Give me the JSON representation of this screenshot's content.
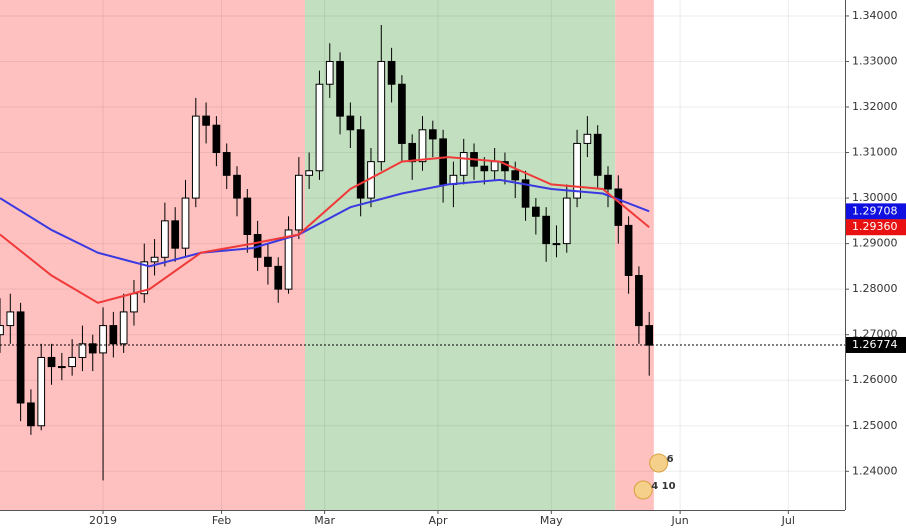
{
  "chart_data": {
    "type": "candlestick",
    "xlim": [
      0,
      164
    ],
    "ylim": [
      1.2315,
      1.3435
    ],
    "xticks": [
      {
        "value": 20,
        "label": "2019"
      },
      {
        "value": 43,
        "label": "Feb"
      },
      {
        "value": 63,
        "label": "Mar"
      },
      {
        "value": 85,
        "label": "Apr"
      },
      {
        "value": 107,
        "label": "May"
      },
      {
        "value": 132,
        "label": "Jun"
      },
      {
        "value": 153,
        "label": "Jul"
      }
    ],
    "yticks": [
      {
        "value": 1.24,
        "label": "1.24000"
      },
      {
        "value": 1.25,
        "label": "1.25000"
      },
      {
        "value": 1.26,
        "label": "1.26000"
      },
      {
        "value": 1.27,
        "label": "1.27000"
      },
      {
        "value": 1.28,
        "label": "1.28000"
      },
      {
        "value": 1.29,
        "label": "1.29000"
      },
      {
        "value": 1.3,
        "label": "1.30000"
      },
      {
        "value": 1.31,
        "label": "1.31000"
      },
      {
        "value": 1.32,
        "label": "1.32000"
      },
      {
        "value": 1.33,
        "label": "1.33000"
      },
      {
        "value": 1.34,
        "label": "1.34000"
      }
    ],
    "grid": true,
    "bands": [
      {
        "from": 0,
        "to": 59.2,
        "color": "#ffc0c0"
      },
      {
        "from": 59.2,
        "to": 119.4,
        "color": "#c2e0c0"
      },
      {
        "from": 119.4,
        "to": 126.9,
        "color": "#ffc0c0"
      }
    ],
    "up_color": "#ffffff",
    "down_color": "#000000",
    "x": [
      0,
      2,
      4,
      6,
      8,
      10,
      12,
      14,
      16,
      18,
      20,
      22,
      24,
      26,
      28,
      30,
      32,
      34,
      36,
      38,
      40,
      42,
      44,
      46,
      48,
      50,
      52,
      54,
      56,
      58,
      60,
      62,
      64,
      66,
      68,
      70,
      72,
      74,
      76,
      78,
      80,
      82,
      84,
      86,
      88,
      90,
      92,
      94,
      96,
      98,
      100,
      102,
      104,
      106,
      108,
      110,
      112,
      114,
      116,
      118,
      120,
      122,
      124,
      126
    ],
    "ohlc": [
      [
        1.27,
        1.278,
        1.266,
        1.272
      ],
      [
        1.272,
        1.279,
        1.268,
        1.275
      ],
      [
        1.275,
        1.277,
        1.251,
        1.255
      ],
      [
        1.255,
        1.258,
        1.248,
        1.25
      ],
      [
        1.25,
        1.268,
        1.249,
        1.265
      ],
      [
        1.265,
        1.268,
        1.259,
        1.263
      ],
      [
        1.263,
        1.266,
        1.26,
        1.263
      ],
      [
        1.263,
        1.269,
        1.261,
        1.265
      ],
      [
        1.265,
        1.272,
        1.262,
        1.268
      ],
      [
        1.268,
        1.27,
        1.262,
        1.266
      ],
      [
        1.266,
        1.276,
        1.238,
        1.272
      ],
      [
        1.272,
        1.275,
        1.265,
        1.268
      ],
      [
        1.268,
        1.279,
        1.266,
        1.275
      ],
      [
        1.275,
        1.282,
        1.272,
        1.279
      ],
      [
        1.279,
        1.29,
        1.277,
        1.286
      ],
      [
        1.286,
        1.291,
        1.283,
        1.287
      ],
      [
        1.287,
        1.299,
        1.285,
        1.295
      ],
      [
        1.295,
        1.298,
        1.286,
        1.289
      ],
      [
        1.289,
        1.304,
        1.287,
        1.3
      ],
      [
        1.3,
        1.322,
        1.298,
        1.318
      ],
      [
        1.318,
        1.321,
        1.312,
        1.316
      ],
      [
        1.316,
        1.318,
        1.307,
        1.31
      ],
      [
        1.31,
        1.312,
        1.302,
        1.305
      ],
      [
        1.305,
        1.307,
        1.296,
        1.3
      ],
      [
        1.3,
        1.302,
        1.288,
        1.292
      ],
      [
        1.292,
        1.295,
        1.284,
        1.287
      ],
      [
        1.287,
        1.29,
        1.281,
        1.285
      ],
      [
        1.285,
        1.287,
        1.277,
        1.28
      ],
      [
        1.28,
        1.296,
        1.279,
        1.293
      ],
      [
        1.293,
        1.309,
        1.291,
        1.305
      ],
      [
        1.305,
        1.31,
        1.302,
        1.306
      ],
      [
        1.306,
        1.328,
        1.304,
        1.325
      ],
      [
        1.325,
        1.334,
        1.322,
        1.33
      ],
      [
        1.33,
        1.332,
        1.314,
        1.318
      ],
      [
        1.318,
        1.321,
        1.311,
        1.315
      ],
      [
        1.315,
        1.318,
        1.296,
        1.3
      ],
      [
        1.3,
        1.311,
        1.298,
        1.308
      ],
      [
        1.308,
        1.338,
        1.306,
        1.33
      ],
      [
        1.33,
        1.333,
        1.321,
        1.325
      ],
      [
        1.325,
        1.327,
        1.308,
        1.312
      ],
      [
        1.312,
        1.314,
        1.304,
        1.308
      ],
      [
        1.308,
        1.318,
        1.306,
        1.315
      ],
      [
        1.315,
        1.317,
        1.309,
        1.313
      ],
      [
        1.313,
        1.315,
        1.299,
        1.303
      ],
      [
        1.303,
        1.308,
        1.298,
        1.305
      ],
      [
        1.305,
        1.313,
        1.303,
        1.31
      ],
      [
        1.31,
        1.312,
        1.304,
        1.307
      ],
      [
        1.307,
        1.309,
        1.303,
        1.306
      ],
      [
        1.306,
        1.311,
        1.304,
        1.308
      ],
      [
        1.308,
        1.31,
        1.303,
        1.306
      ],
      [
        1.306,
        1.308,
        1.3,
        1.304
      ],
      [
        1.304,
        1.306,
        1.295,
        1.298
      ],
      [
        1.298,
        1.3,
        1.292,
        1.296
      ],
      [
        1.296,
        1.298,
        1.286,
        1.29
      ],
      [
        1.29,
        1.294,
        1.287,
        1.29
      ],
      [
        1.29,
        1.303,
        1.288,
        1.3
      ],
      [
        1.3,
        1.315,
        1.298,
        1.312
      ],
      [
        1.312,
        1.318,
        1.309,
        1.314
      ],
      [
        1.314,
        1.316,
        1.302,
        1.305
      ],
      [
        1.305,
        1.307,
        1.298,
        1.302
      ],
      [
        1.302,
        1.305,
        1.29,
        1.294
      ],
      [
        1.294,
        1.296,
        1.279,
        1.283
      ],
      [
        1.283,
        1.285,
        1.268,
        1.272
      ],
      [
        1.272,
        1.275,
        1.261,
        1.2677
      ]
    ],
    "lines": [
      {
        "color": "#3a3ae0",
        "x": [
          0,
          10,
          19,
          29,
          39,
          49,
          58,
          68,
          78,
          87,
          97,
          107,
          117,
          126
        ],
        "values": [
          1.3,
          1.293,
          1.288,
          1.285,
          1.288,
          1.289,
          1.292,
          1.298,
          1.301,
          1.303,
          1.304,
          1.302,
          1.301,
          1.2971
        ]
      },
      {
        "color": "#f03a3a",
        "x": [
          0,
          10,
          19,
          29,
          39,
          49,
          58,
          68,
          78,
          87,
          97,
          107,
          117,
          126
        ],
        "values": [
          1.292,
          1.283,
          1.277,
          1.28,
          1.288,
          1.29,
          1.292,
          1.302,
          1.308,
          1.309,
          1.308,
          1.303,
          1.302,
          1.2936
        ]
      }
    ],
    "price_labels": [
      {
        "value": 1.29708,
        "label": "1.29708",
        "color": "#1010e0"
      },
      {
        "value": 1.2936,
        "label": "1.29360",
        "color": "#e81010"
      },
      {
        "value": 1.26774,
        "label": "1.26774",
        "color": "#000000"
      }
    ],
    "events": [
      {
        "x": 129,
        "label": "6"
      },
      {
        "x": 126,
        "label": "4 10"
      }
    ]
  }
}
